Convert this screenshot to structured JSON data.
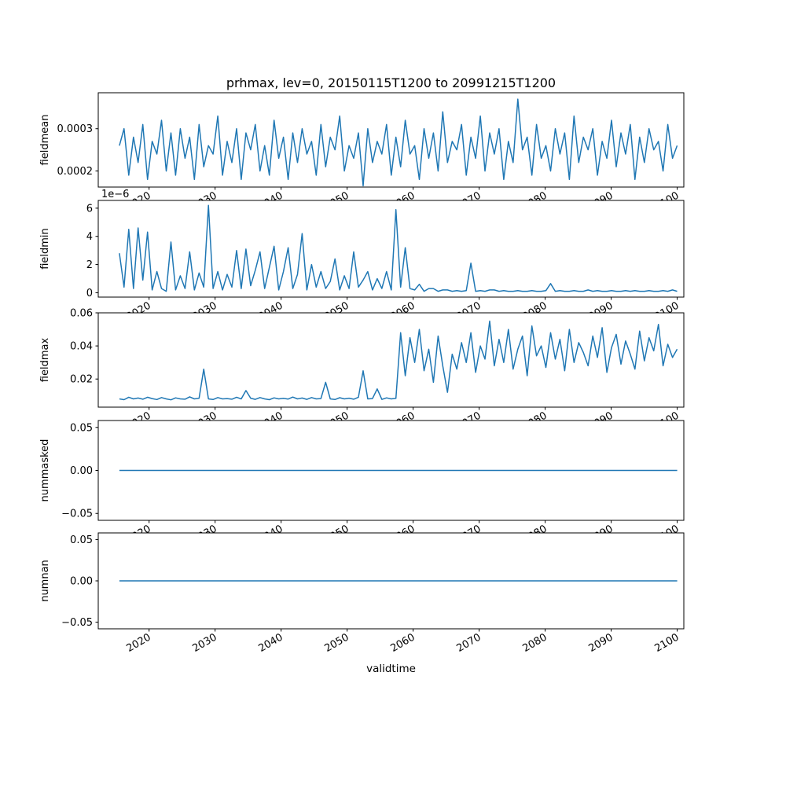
{
  "figure": {
    "title": "prhmax, lev=0, 20150115T1200 to 20991215T1200",
    "xlabel": "validtime",
    "line_color": "#1f77b4",
    "background": "#ffffff",
    "x_ticks": [
      2020,
      2030,
      2040,
      2050,
      2060,
      2070,
      2080,
      2090,
      2100
    ],
    "xlim": [
      2012.3,
      2101.0
    ]
  },
  "chart_data": [
    {
      "type": "line",
      "ylabel": "fieldmean",
      "ylim": [
        0.000162,
        0.000385
      ],
      "yticks": [
        0.0002,
        0.0003
      ],
      "ytick_labels": [
        "0.0002",
        "0.0003"
      ],
      "x_start": 2015.5,
      "x_step": 0.71,
      "values": [
        0.00026,
        0.0003,
        0.00019,
        0.00028,
        0.00022,
        0.00031,
        0.00018,
        0.00027,
        0.00024,
        0.00032,
        0.0002,
        0.00029,
        0.00019,
        0.0003,
        0.00023,
        0.00028,
        0.00018,
        0.00031,
        0.00021,
        0.00026,
        0.00024,
        0.00033,
        0.00019,
        0.00027,
        0.00022,
        0.0003,
        0.00018,
        0.00029,
        0.00025,
        0.00031,
        0.0002,
        0.00026,
        0.00019,
        0.00032,
        0.00023,
        0.00028,
        0.00018,
        0.00029,
        0.00022,
        0.0003,
        0.00024,
        0.00027,
        0.00019,
        0.00031,
        0.00021,
        0.00028,
        0.00025,
        0.00033,
        0.0002,
        0.00026,
        0.00023,
        0.00029,
        0.000165,
        0.0003,
        0.00022,
        0.00027,
        0.00024,
        0.00031,
        0.00019,
        0.00028,
        0.00021,
        0.00032,
        0.00024,
        0.00026,
        0.00018,
        0.0003,
        0.00023,
        0.00029,
        0.0002,
        0.00034,
        0.00022,
        0.00027,
        0.00025,
        0.00031,
        0.00019,
        0.00028,
        0.00023,
        0.00033,
        0.0002,
        0.00029,
        0.00024,
        0.0003,
        0.00018,
        0.00027,
        0.00022,
        0.00037,
        0.00025,
        0.00028,
        0.00019,
        0.00031,
        0.00023,
        0.00026,
        0.0002,
        0.0003,
        0.00024,
        0.00029,
        0.00018,
        0.00033,
        0.00022,
        0.00028,
        0.00025,
        0.0003,
        0.00019,
        0.00027,
        0.00023,
        0.00032,
        0.00021,
        0.00029,
        0.00024,
        0.00031,
        0.00018,
        0.00028,
        0.00022,
        0.0003,
        0.00025,
        0.00027,
        0.0002,
        0.00031,
        0.00023,
        0.00026
      ]
    },
    {
      "type": "line",
      "ylabel": "fieldmin",
      "offset_label": "1e−6",
      "value_scale_note": "values in units of 1e-6",
      "ylim": [
        -0.31,
        6.55
      ],
      "yticks": [
        0,
        2,
        4,
        6
      ],
      "ytick_labels": [
        "0",
        "2",
        "4",
        "6"
      ],
      "x_start": 2015.5,
      "x_step": 0.71,
      "values": [
        2.8,
        0.4,
        4.5,
        0.3,
        4.6,
        0.9,
        4.3,
        0.2,
        1.5,
        0.3,
        0.1,
        3.6,
        0.2,
        1.2,
        0.3,
        2.9,
        0.2,
        1.4,
        0.4,
        6.2,
        0.3,
        1.5,
        0.2,
        1.3,
        0.4,
        3.0,
        0.3,
        3.1,
        0.5,
        1.6,
        2.9,
        0.3,
        1.8,
        3.3,
        0.2,
        1.5,
        3.2,
        0.3,
        1.3,
        4.2,
        0.2,
        2.0,
        0.4,
        1.5,
        0.3,
        0.8,
        2.4,
        0.2,
        1.2,
        0.3,
        2.9,
        0.4,
        0.9,
        1.5,
        0.2,
        1.0,
        0.3,
        1.5,
        0.2,
        5.9,
        0.4,
        3.2,
        0.3,
        0.2,
        0.6,
        0.1,
        0.3,
        0.3,
        0.1,
        0.2,
        0.2,
        0.1,
        0.15,
        0.1,
        0.15,
        2.1,
        0.1,
        0.15,
        0.1,
        0.2,
        0.2,
        0.1,
        0.15,
        0.1,
        0.1,
        0.15,
        0.1,
        0.1,
        0.15,
        0.1,
        0.1,
        0.15,
        0.65,
        0.1,
        0.15,
        0.1,
        0.1,
        0.15,
        0.1,
        0.1,
        0.2,
        0.1,
        0.15,
        0.1,
        0.1,
        0.15,
        0.1,
        0.1,
        0.15,
        0.1,
        0.15,
        0.1,
        0.1,
        0.15,
        0.1,
        0.1,
        0.15,
        0.1,
        0.2,
        0.1
      ]
    },
    {
      "type": "line",
      "ylabel": "fieldmax",
      "ylim": [
        0.003,
        0.06
      ],
      "yticks": [
        0.02,
        0.04,
        0.06
      ],
      "ytick_labels": [
        "0.02",
        "0.04",
        "0.06"
      ],
      "x_start": 2015.5,
      "x_step": 0.71,
      "values": [
        0.008,
        0.0075,
        0.009,
        0.008,
        0.0085,
        0.0078,
        0.009,
        0.0082,
        0.0076,
        0.0088,
        0.008,
        0.0074,
        0.0086,
        0.008,
        0.0078,
        0.0092,
        0.008,
        0.0084,
        0.026,
        0.008,
        0.0076,
        0.0088,
        0.008,
        0.0082,
        0.0078,
        0.009,
        0.008,
        0.013,
        0.0084,
        0.0077,
        0.0088,
        0.008,
        0.0075,
        0.0086,
        0.008,
        0.0083,
        0.0079,
        0.0091,
        0.008,
        0.0085,
        0.0077,
        0.0088,
        0.008,
        0.0082,
        0.018,
        0.008,
        0.0076,
        0.0087,
        0.008,
        0.0084,
        0.0078,
        0.009,
        0.025,
        0.008,
        0.0082,
        0.014,
        0.0077,
        0.0086,
        0.008,
        0.0083,
        0.048,
        0.022,
        0.045,
        0.03,
        0.05,
        0.025,
        0.038,
        0.018,
        0.046,
        0.028,
        0.012,
        0.035,
        0.026,
        0.042,
        0.03,
        0.048,
        0.024,
        0.04,
        0.032,
        0.055,
        0.028,
        0.044,
        0.03,
        0.05,
        0.026,
        0.038,
        0.046,
        0.022,
        0.052,
        0.034,
        0.04,
        0.027,
        0.048,
        0.032,
        0.044,
        0.025,
        0.05,
        0.03,
        0.042,
        0.036,
        0.028,
        0.046,
        0.033,
        0.051,
        0.024,
        0.039,
        0.047,
        0.029,
        0.043,
        0.035,
        0.026,
        0.049,
        0.031,
        0.045,
        0.037,
        0.053,
        0.028,
        0.041,
        0.033,
        0.038
      ]
    },
    {
      "type": "line",
      "ylabel": "nummasked",
      "ylim": [
        -0.058,
        0.058
      ],
      "yticks": [
        -0.05,
        0.0,
        0.05
      ],
      "ytick_labels": [
        "−0.05",
        "0.00",
        "0.05"
      ],
      "x_start": 2015.5,
      "x_step": 84.5,
      "values": [
        0,
        0
      ]
    },
    {
      "type": "line",
      "ylabel": "numnan",
      "ylim": [
        -0.058,
        0.058
      ],
      "yticks": [
        -0.05,
        0.0,
        0.05
      ],
      "ytick_labels": [
        "−0.05",
        "0.00",
        "0.05"
      ],
      "x_start": 2015.5,
      "x_step": 84.5,
      "values": [
        0,
        0
      ]
    }
  ]
}
